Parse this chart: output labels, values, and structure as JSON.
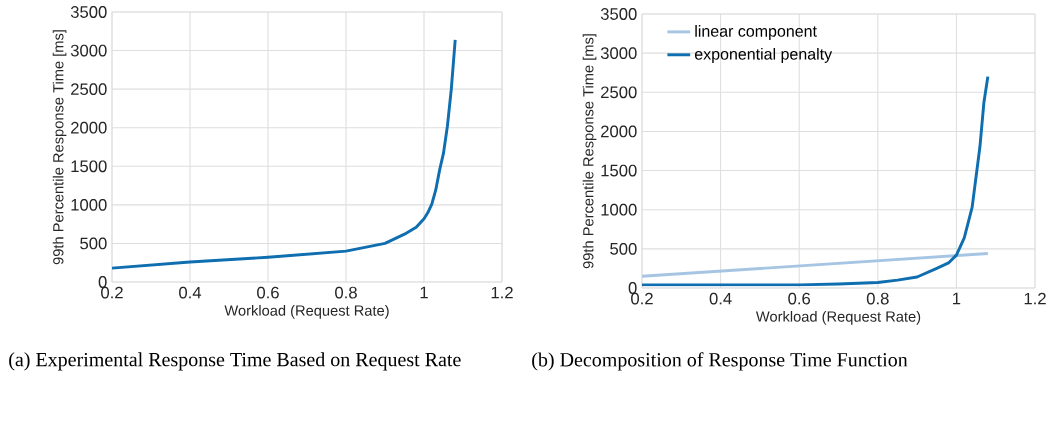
{
  "chart_data": [
    {
      "type": "line",
      "title": "(a) Experimental Response Time Based on Request Rate",
      "xlabel": "Workload (Request Rate)",
      "ylabel": "99th Percentile Response Time [ms]",
      "x": [
        0.2,
        0.4,
        0.6,
        0.8,
        0.85,
        0.9,
        0.95,
        0.98,
        1.0,
        1.01,
        1.02,
        1.03,
        1.04,
        1.05,
        1.06,
        1.07,
        1.08
      ],
      "series": [
        {
          "color": "#0f6eb0",
          "values": [
            180,
            260,
            320,
            400,
            450,
            500,
            620,
            710,
            820,
            900,
            1010,
            1190,
            1450,
            1670,
            2020,
            2500,
            3140
          ]
        }
      ],
      "xlim": [
        0.2,
        1.2
      ],
      "ylim": [
        0,
        3500
      ],
      "xticks": [
        0.2,
        0.4,
        0.6,
        0.8,
        1,
        1.2
      ],
      "yticks": [
        0,
        500,
        1000,
        1500,
        2000,
        2500,
        3000,
        3500
      ],
      "grid": true,
      "marker": "none"
    },
    {
      "type": "line",
      "title": "(b) Decomposition of Response Time Function",
      "xlabel": "Workload (Request Rate)",
      "ylabel": "99th Percentile Response Time [ms]",
      "series": [
        {
          "name": "linear component",
          "color": "#a6c5e3",
          "x": [
            0.2,
            1.08
          ],
          "values": [
            150,
            440
          ]
        },
        {
          "name": "exponential penalty",
          "color": "#0f6eb0",
          "x": [
            0.2,
            0.6,
            0.7,
            0.8,
            0.85,
            0.9,
            0.95,
            0.98,
            1.0,
            1.02,
            1.04,
            1.06,
            1.07,
            1.08
          ],
          "values": [
            40,
            40,
            50,
            70,
            100,
            140,
            250,
            320,
            420,
            640,
            1030,
            1810,
            2370,
            2700
          ]
        }
      ],
      "xlim": [
        0.2,
        1.2
      ],
      "ylim": [
        0,
        3500
      ],
      "xticks": [
        0.2,
        0.4,
        0.6,
        0.8,
        1,
        1.2
      ],
      "yticks": [
        0,
        500,
        1000,
        1500,
        2000,
        2500,
        3000,
        3500
      ],
      "grid": true,
      "legend": "top left",
      "marker": "none"
    }
  ]
}
